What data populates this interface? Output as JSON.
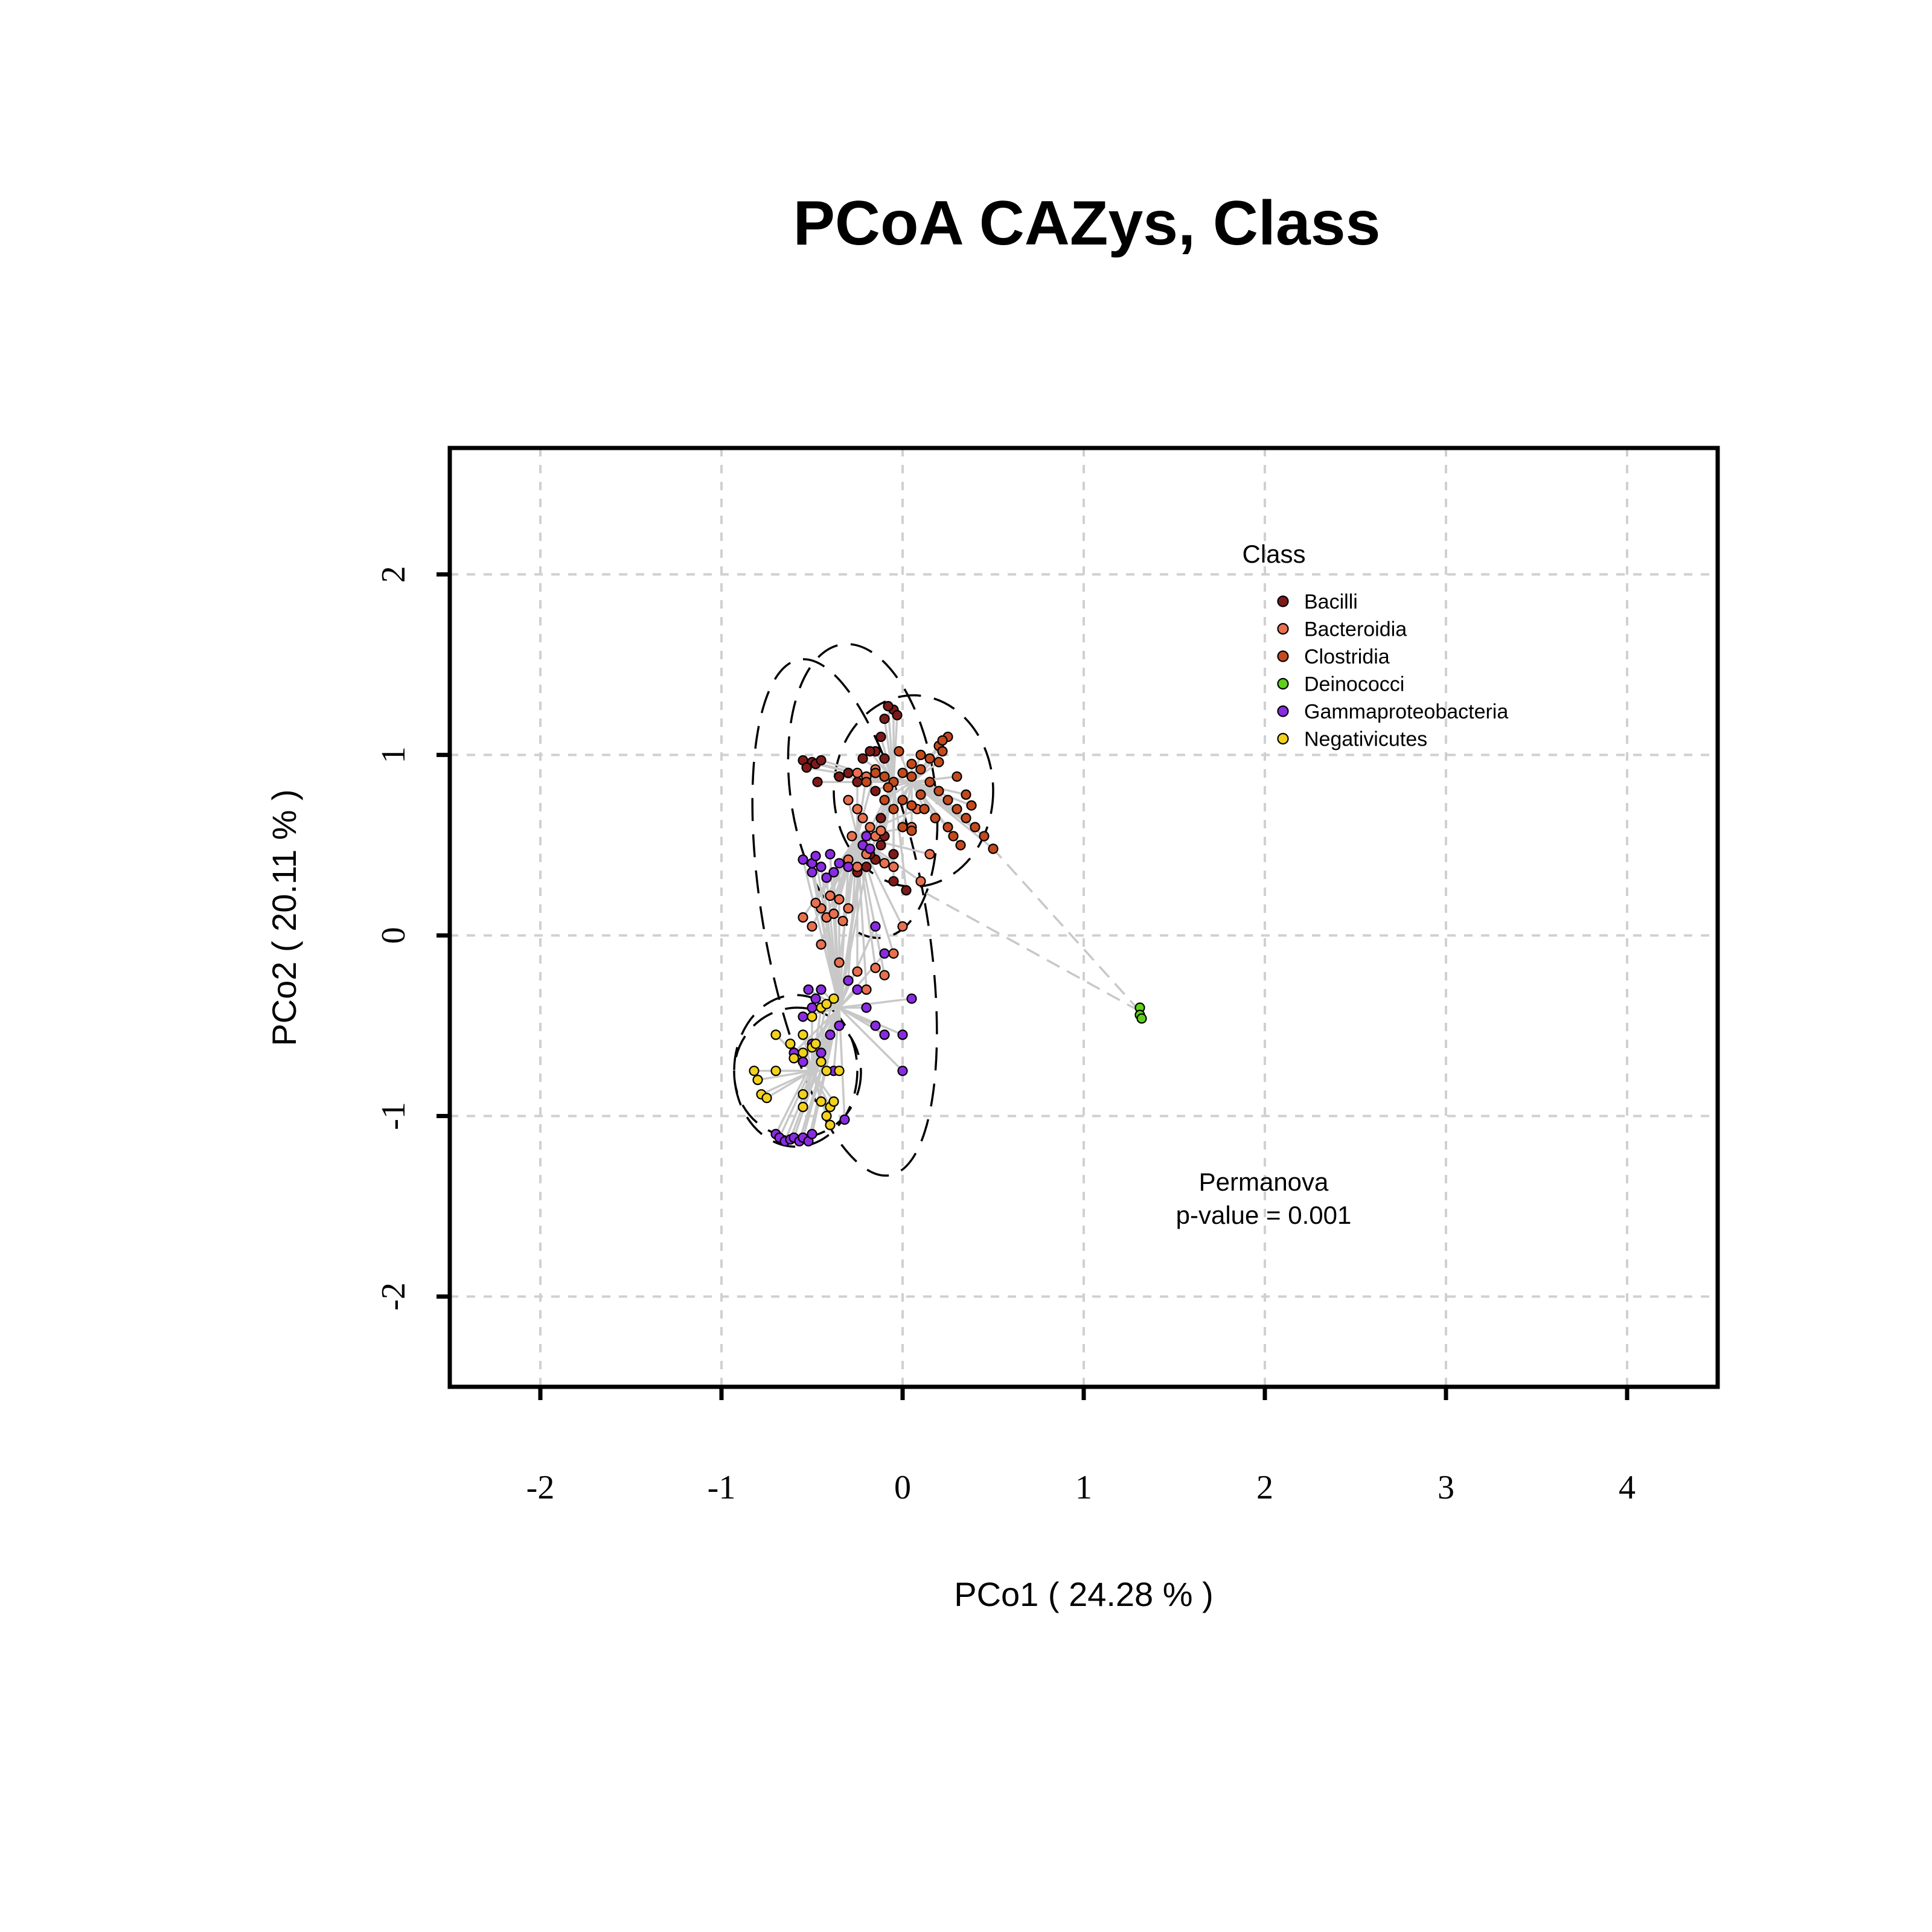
{
  "chart_data": {
    "type": "scatter",
    "title": "PCoA CAZys, Class",
    "xlabel": "PCo1 ( 24.28 % )",
    "ylabel": "PCo2 ( 20.11 % )",
    "xlim": [
      -2.5,
      4.5
    ],
    "ylim": [
      -2.5,
      2.7
    ],
    "x_ticks": [
      -2,
      -1,
      0,
      1,
      2,
      3,
      4
    ],
    "y_ticks": [
      -2,
      -1,
      0,
      1,
      2
    ],
    "grid": true,
    "legend": {
      "title": "Class",
      "position": "top-right"
    },
    "annotation": {
      "lines": [
        "Permanova",
        "p-value = 0.001"
      ]
    },
    "series": [
      {
        "name": "Bacilli",
        "color": "#7f1a1a",
        "centroid": [
          -0.05,
          0.85
        ],
        "ellipse": {
          "cx": -0.22,
          "cy": 0.8,
          "rx": 0.4,
          "ry": 0.82,
          "angle": -8
        },
        "points": [
          [
            -0.1,
            1.2
          ],
          [
            -0.05,
            1.25
          ],
          [
            -0.08,
            1.27
          ],
          [
            -0.03,
            1.22
          ],
          [
            -0.12,
            1.1
          ],
          [
            -0.15,
            1.02
          ],
          [
            -0.1,
            0.98
          ],
          [
            -0.55,
            0.97
          ],
          [
            -0.5,
            0.96
          ],
          [
            -0.48,
            0.95
          ],
          [
            -0.45,
            0.97
          ],
          [
            -0.53,
            0.93
          ],
          [
            -0.47,
            0.85
          ],
          [
            -0.22,
            0.98
          ],
          [
            -0.18,
            1.02
          ],
          [
            -0.3,
            0.9
          ],
          [
            -0.35,
            0.88
          ],
          [
            -0.25,
            0.85
          ],
          [
            -0.15,
            0.8
          ],
          [
            -0.12,
            0.65
          ],
          [
            -0.1,
            0.55
          ],
          [
            -0.05,
            0.45
          ],
          [
            -0.15,
            0.42
          ],
          [
            -0.2,
            0.38
          ],
          [
            -0.25,
            0.35
          ],
          [
            0.02,
            0.25
          ],
          [
            -0.05,
            0.3
          ],
          [
            -0.12,
            0.5
          ],
          [
            -0.2,
            0.55
          ],
          [
            -0.18,
            0.45
          ]
        ]
      },
      {
        "name": "Bacteroidia",
        "color": "#e8704f",
        "centroid": [
          -0.25,
          0.55
        ],
        "ellipse": {
          "cx": -0.32,
          "cy": 0.1,
          "rx": 0.45,
          "ry": 1.45,
          "angle": -10
        },
        "points": [
          [
            -0.25,
            0.9
          ],
          [
            -0.2,
            0.88
          ],
          [
            -0.15,
            0.92
          ],
          [
            -0.3,
            0.75
          ],
          [
            -0.25,
            0.7
          ],
          [
            -0.22,
            0.65
          ],
          [
            -0.18,
            0.6
          ],
          [
            -0.28,
            0.55
          ],
          [
            -0.15,
            0.55
          ],
          [
            -0.12,
            0.58
          ],
          [
            -0.2,
            0.45
          ],
          [
            -0.3,
            0.42
          ],
          [
            -0.25,
            0.38
          ],
          [
            -0.1,
            0.4
          ],
          [
            -0.05,
            0.38
          ],
          [
            -0.4,
            0.22
          ],
          [
            -0.35,
            0.2
          ],
          [
            -0.45,
            0.15
          ],
          [
            -0.42,
            0.1
          ],
          [
            -0.38,
            0.12
          ],
          [
            -0.33,
            0.08
          ],
          [
            -0.3,
            0.15
          ],
          [
            -0.48,
            0.18
          ],
          [
            -0.35,
            -0.15
          ],
          [
            -0.25,
            -0.2
          ],
          [
            -0.15,
            -0.18
          ],
          [
            -0.1,
            -0.22
          ],
          [
            -0.3,
            -0.25
          ],
          [
            -0.2,
            -0.3
          ],
          [
            -0.05,
            -0.1
          ],
          [
            0.0,
            0.05
          ],
          [
            -0.55,
            0.1
          ],
          [
            -0.5,
            0.05
          ],
          [
            -0.45,
            -0.05
          ],
          [
            0.1,
            0.3
          ],
          [
            0.15,
            0.45
          ],
          [
            0.05,
            0.6
          ],
          [
            0.08,
            0.7
          ]
        ]
      },
      {
        "name": "Clostridia",
        "color": "#c24a1d",
        "centroid": [
          0.05,
          0.85
        ],
        "ellipse": {
          "cx": 0.06,
          "cy": 0.8,
          "rx": 0.44,
          "ry": 0.53,
          "angle": 0
        },
        "points": [
          [
            0.0,
            0.9
          ],
          [
            0.05,
            0.88
          ],
          [
            0.1,
            0.92
          ],
          [
            -0.05,
            0.85
          ],
          [
            -0.1,
            0.88
          ],
          [
            0.15,
            0.85
          ],
          [
            0.2,
            0.8
          ],
          [
            0.25,
            0.75
          ],
          [
            0.3,
            0.7
          ],
          [
            0.35,
            0.65
          ],
          [
            0.4,
            0.6
          ],
          [
            0.45,
            0.55
          ],
          [
            0.5,
            0.48
          ],
          [
            0.2,
            1.05
          ],
          [
            0.25,
            1.1
          ],
          [
            0.22,
            1.02
          ],
          [
            0.15,
            0.98
          ],
          [
            0.1,
            1.0
          ],
          [
            0.05,
            0.95
          ],
          [
            -0.02,
            1.02
          ],
          [
            0.0,
            0.75
          ],
          [
            0.05,
            0.72
          ],
          [
            0.1,
            0.78
          ],
          [
            0.3,
            0.88
          ],
          [
            0.35,
            0.78
          ],
          [
            0.25,
            0.6
          ],
          [
            0.28,
            0.55
          ],
          [
            0.32,
            0.5
          ],
          [
            0.0,
            0.6
          ],
          [
            0.05,
            0.58
          ],
          [
            -0.05,
            0.7
          ],
          [
            -0.1,
            0.75
          ],
          [
            -0.08,
            0.82
          ],
          [
            0.12,
            0.7
          ],
          [
            0.18,
            0.65
          ],
          [
            0.22,
            1.08
          ],
          [
            0.2,
            0.96
          ],
          [
            0.38,
            0.72
          ],
          [
            -0.15,
            0.9
          ],
          [
            -0.2,
            0.85
          ]
        ]
      },
      {
        "name": "Deinococci",
        "color": "#5fd11b",
        "centroid": [
          1.31,
          -0.42
        ],
        "points": [
          [
            1.31,
            -0.4
          ],
          [
            1.31,
            -0.44
          ],
          [
            1.32,
            -0.46
          ]
        ]
      },
      {
        "name": "Gammaproteobacteria",
        "color": "#8a2be2",
        "centroid": [
          -0.35,
          -0.4
        ],
        "ellipse": {
          "cx": -0.58,
          "cy": -0.76,
          "rx": 0.35,
          "ry": 0.36,
          "angle": 0
        },
        "points": [
          [
            -0.55,
            0.42
          ],
          [
            -0.5,
            0.4
          ],
          [
            -0.45,
            0.38
          ],
          [
            -0.4,
            0.45
          ],
          [
            -0.35,
            0.4
          ],
          [
            -0.3,
            0.38
          ],
          [
            -0.5,
            0.35
          ],
          [
            -0.42,
            0.32
          ],
          [
            -0.48,
            0.44
          ],
          [
            -0.38,
            0.35
          ],
          [
            -0.2,
            0.55
          ],
          [
            -0.22,
            0.5
          ],
          [
            -0.18,
            0.48
          ],
          [
            -0.52,
            -0.3
          ],
          [
            -0.48,
            -0.35
          ],
          [
            -0.45,
            -0.3
          ],
          [
            -0.5,
            -0.4
          ],
          [
            -0.55,
            -0.45
          ],
          [
            -0.4,
            -0.55
          ],
          [
            -0.35,
            -0.5
          ],
          [
            -0.6,
            -0.65
          ],
          [
            -0.55,
            -0.7
          ],
          [
            -0.45,
            -0.65
          ],
          [
            -0.5,
            -0.6
          ],
          [
            -0.3,
            -0.25
          ],
          [
            -0.25,
            -0.3
          ],
          [
            -0.2,
            -0.4
          ],
          [
            -0.15,
            -0.5
          ],
          [
            -0.1,
            -0.55
          ],
          [
            0.05,
            -0.35
          ],
          [
            0.0,
            -0.55
          ],
          [
            0.0,
            -0.75
          ],
          [
            -0.38,
            -0.75
          ],
          [
            -0.7,
            -1.1
          ],
          [
            -0.68,
            -1.12
          ],
          [
            -0.65,
            -1.14
          ],
          [
            -0.62,
            -1.13
          ],
          [
            -0.6,
            -1.12
          ],
          [
            -0.57,
            -1.14
          ],
          [
            -0.55,
            -1.12
          ],
          [
            -0.52,
            -1.14
          ],
          [
            -0.5,
            -1.1
          ],
          [
            -0.32,
            -1.02
          ],
          [
            -0.15,
            0.05
          ],
          [
            -0.1,
            -0.1
          ]
        ]
      },
      {
        "name": "Negativicutes",
        "color": "#f2d11b",
        "centroid": [
          -0.5,
          -0.75
        ],
        "ellipse": {
          "cx": -0.59,
          "cy": -0.75,
          "rx": 0.34,
          "ry": 0.42,
          "angle": 0
        },
        "points": [
          [
            -0.82,
            -0.75
          ],
          [
            -0.8,
            -0.8
          ],
          [
            -0.78,
            -0.88
          ],
          [
            -0.75,
            -0.9
          ],
          [
            -0.7,
            -0.75
          ],
          [
            -0.7,
            -0.55
          ],
          [
            -0.62,
            -0.6
          ],
          [
            -0.6,
            -0.68
          ],
          [
            -0.55,
            -0.65
          ],
          [
            -0.55,
            -0.55
          ],
          [
            -0.5,
            -0.62
          ],
          [
            -0.48,
            -0.6
          ],
          [
            -0.45,
            -0.4
          ],
          [
            -0.5,
            -0.45
          ],
          [
            -0.42,
            -0.38
          ],
          [
            -0.38,
            -0.35
          ],
          [
            -0.45,
            -0.7
          ],
          [
            -0.42,
            -0.75
          ],
          [
            -0.35,
            -0.75
          ],
          [
            -0.55,
            -0.88
          ],
          [
            -0.55,
            -0.95
          ],
          [
            -0.45,
            -0.92
          ],
          [
            -0.4,
            -0.95
          ],
          [
            -0.38,
            -0.92
          ],
          [
            -0.42,
            -1.0
          ],
          [
            -0.4,
            -1.05
          ]
        ]
      }
    ]
  }
}
